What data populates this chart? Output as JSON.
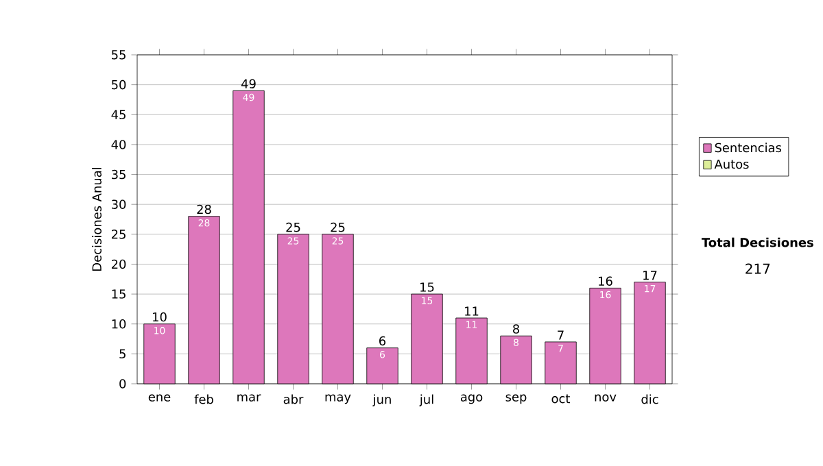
{
  "chart_data": {
    "type": "bar",
    "stacked": true,
    "ylabel": "Decisiones Anual",
    "categories": [
      "ene",
      "feb",
      "mar",
      "abr",
      "may",
      "jun",
      "jul",
      "ago",
      "sep",
      "oct",
      "nov",
      "dic"
    ],
    "series": [
      {
        "name": "Sentencias",
        "color": "#dd77bb",
        "values": [
          10,
          28,
          49,
          25,
          25,
          6,
          15,
          11,
          8,
          7,
          16,
          17
        ],
        "value_labels": [
          "10",
          "28",
          "49",
          "25",
          "25",
          "6",
          "15",
          "11",
          "8",
          "7",
          "16",
          "17"
        ]
      },
      {
        "name": "Autos",
        "color": "#ddee99",
        "values": [
          0,
          0,
          0,
          0,
          0,
          0,
          0,
          0,
          0,
          0,
          0,
          0
        ]
      }
    ],
    "totals": [
      "10",
      "28",
      "49",
      "25",
      "25",
      "6",
      "15",
      "11",
      "8",
      "7",
      "16",
      "17"
    ],
    "ylim": [
      0,
      55
    ],
    "yticks": [
      0,
      5,
      10,
      15,
      20,
      25,
      30,
      35,
      40,
      45,
      50,
      55
    ],
    "grid": "y",
    "legend": "right",
    "annotations": [
      "Total Decisiones",
      "217"
    ]
  }
}
